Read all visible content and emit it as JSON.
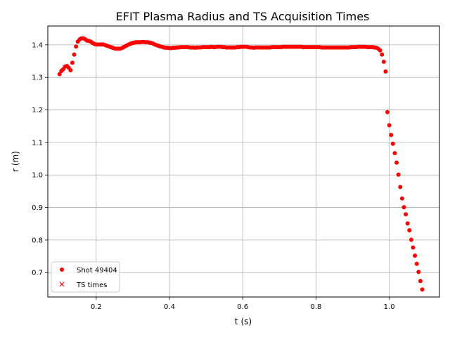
{
  "chart_data": {
    "type": "scatter",
    "title": "EFIT Plasma Radius and TS Acquisition Times",
    "xlabel": "t (s)",
    "ylabel": "r (m)",
    "xlim": [
      0.068,
      1.137
    ],
    "ylim": [
      0.625,
      1.458
    ],
    "xticks": [
      0.2,
      0.4,
      0.6,
      0.8,
      1.0
    ],
    "xtick_labels": [
      "0.2",
      "0.4",
      "0.6",
      "0.8",
      "1.0"
    ],
    "yticks": [
      0.7,
      0.8,
      0.9,
      1.0,
      1.1,
      1.2,
      1.3,
      1.4
    ],
    "ytick_labels": [
      "0.7",
      "0.8",
      "0.9",
      "1.0",
      "1.1",
      "1.2",
      "1.3",
      "1.4"
    ],
    "grid": true,
    "legend_position": "lower-left",
    "series": [
      {
        "name": "Shot 49404",
        "marker": "circle",
        "color": "#ff0000",
        "points": [
          [
            0.1,
            1.31
          ],
          [
            0.105,
            1.32
          ],
          [
            0.11,
            1.325
          ],
          [
            0.115,
            1.333
          ],
          [
            0.12,
            1.335
          ],
          [
            0.125,
            1.33
          ],
          [
            0.13,
            1.322
          ],
          [
            0.135,
            1.345
          ],
          [
            0.14,
            1.37
          ],
          [
            0.145,
            1.395
          ],
          [
            0.15,
            1.41
          ],
          [
            0.155,
            1.417
          ],
          [
            0.16,
            1.42
          ],
          [
            0.165,
            1.42
          ],
          [
            0.17,
            1.417
          ],
          [
            0.175,
            1.413
          ],
          [
            0.18,
            1.412
          ],
          [
            0.185,
            1.41
          ],
          [
            0.19,
            1.406
          ],
          [
            0.195,
            1.403
          ],
          [
            0.2,
            1.401
          ],
          [
            0.205,
            1.401
          ],
          [
            0.21,
            1.401
          ],
          [
            0.215,
            1.401
          ],
          [
            0.22,
            1.401
          ],
          [
            0.225,
            1.399
          ],
          [
            0.23,
            1.397
          ],
          [
            0.235,
            1.395
          ],
          [
            0.24,
            1.393
          ],
          [
            0.245,
            1.391
          ],
          [
            0.25,
            1.389
          ],
          [
            0.255,
            1.388
          ],
          [
            0.26,
            1.388
          ],
          [
            0.265,
            1.388
          ],
          [
            0.27,
            1.39
          ],
          [
            0.275,
            1.393
          ],
          [
            0.28,
            1.396
          ],
          [
            0.285,
            1.399
          ],
          [
            0.29,
            1.402
          ],
          [
            0.295,
            1.404
          ],
          [
            0.3,
            1.406
          ],
          [
            0.305,
            1.407
          ],
          [
            0.31,
            1.408
          ],
          [
            0.315,
            1.408
          ],
          [
            0.32,
            1.408
          ],
          [
            0.325,
            1.409
          ],
          [
            0.33,
            1.409
          ],
          [
            0.335,
            1.408
          ],
          [
            0.34,
            1.408
          ],
          [
            0.345,
            1.407
          ],
          [
            0.35,
            1.406
          ],
          [
            0.355,
            1.404
          ],
          [
            0.36,
            1.401
          ],
          [
            0.365,
            1.399
          ],
          [
            0.37,
            1.397
          ],
          [
            0.375,
            1.395
          ],
          [
            0.38,
            1.394
          ],
          [
            0.385,
            1.392
          ],
          [
            0.39,
            1.391
          ],
          [
            0.395,
            1.391
          ],
          [
            0.4,
            1.39
          ],
          [
            0.405,
            1.39
          ],
          [
            0.41,
            1.391
          ],
          [
            0.415,
            1.391
          ],
          [
            0.42,
            1.392
          ],
          [
            0.425,
            1.392
          ],
          [
            0.43,
            1.393
          ],
          [
            0.435,
            1.393
          ],
          [
            0.44,
            1.393
          ],
          [
            0.445,
            1.393
          ],
          [
            0.45,
            1.393
          ],
          [
            0.455,
            1.392
          ],
          [
            0.46,
            1.392
          ],
          [
            0.465,
            1.392
          ],
          [
            0.47,
            1.391
          ],
          [
            0.475,
            1.392
          ],
          [
            0.48,
            1.392
          ],
          [
            0.485,
            1.392
          ],
          [
            0.49,
            1.393
          ],
          [
            0.495,
            1.393
          ],
          [
            0.5,
            1.393
          ],
          [
            0.505,
            1.393
          ],
          [
            0.51,
            1.393
          ],
          [
            0.515,
            1.394
          ],
          [
            0.52,
            1.393
          ],
          [
            0.525,
            1.393
          ],
          [
            0.53,
            1.394
          ],
          [
            0.535,
            1.394
          ],
          [
            0.54,
            1.394
          ],
          [
            0.545,
            1.393
          ],
          [
            0.55,
            1.393
          ],
          [
            0.555,
            1.392
          ],
          [
            0.56,
            1.392
          ],
          [
            0.565,
            1.392
          ],
          [
            0.57,
            1.392
          ],
          [
            0.575,
            1.392
          ],
          [
            0.58,
            1.392
          ],
          [
            0.585,
            1.393
          ],
          [
            0.59,
            1.393
          ],
          [
            0.595,
            1.394
          ],
          [
            0.6,
            1.394
          ],
          [
            0.605,
            1.394
          ],
          [
            0.61,
            1.394
          ],
          [
            0.615,
            1.393
          ],
          [
            0.62,
            1.392
          ],
          [
            0.625,
            1.392
          ],
          [
            0.63,
            1.391
          ],
          [
            0.635,
            1.392
          ],
          [
            0.64,
            1.392
          ],
          [
            0.645,
            1.392
          ],
          [
            0.65,
            1.392
          ],
          [
            0.655,
            1.392
          ],
          [
            0.66,
            1.392
          ],
          [
            0.665,
            1.392
          ],
          [
            0.67,
            1.392
          ],
          [
            0.675,
            1.392
          ],
          [
            0.68,
            1.393
          ],
          [
            0.685,
            1.393
          ],
          [
            0.69,
            1.393
          ],
          [
            0.695,
            1.393
          ],
          [
            0.7,
            1.393
          ],
          [
            0.705,
            1.393
          ],
          [
            0.71,
            1.394
          ],
          [
            0.715,
            1.394
          ],
          [
            0.72,
            1.394
          ],
          [
            0.725,
            1.394
          ],
          [
            0.73,
            1.394
          ],
          [
            0.735,
            1.394
          ],
          [
            0.74,
            1.394
          ],
          [
            0.745,
            1.394
          ],
          [
            0.75,
            1.394
          ],
          [
            0.755,
            1.394
          ],
          [
            0.76,
            1.394
          ],
          [
            0.765,
            1.393
          ],
          [
            0.77,
            1.393
          ],
          [
            0.775,
            1.393
          ],
          [
            0.78,
            1.393
          ],
          [
            0.785,
            1.393
          ],
          [
            0.79,
            1.393
          ],
          [
            0.795,
            1.393
          ],
          [
            0.8,
            1.393
          ],
          [
            0.805,
            1.393
          ],
          [
            0.81,
            1.393
          ],
          [
            0.815,
            1.392
          ],
          [
            0.82,
            1.392
          ],
          [
            0.825,
            1.392
          ],
          [
            0.83,
            1.392
          ],
          [
            0.835,
            1.392
          ],
          [
            0.84,
            1.392
          ],
          [
            0.845,
            1.392
          ],
          [
            0.85,
            1.392
          ],
          [
            0.855,
            1.392
          ],
          [
            0.86,
            1.392
          ],
          [
            0.865,
            1.392
          ],
          [
            0.87,
            1.392
          ],
          [
            0.875,
            1.392
          ],
          [
            0.88,
            1.392
          ],
          [
            0.885,
            1.392
          ],
          [
            0.89,
            1.392
          ],
          [
            0.895,
            1.393
          ],
          [
            0.9,
            1.393
          ],
          [
            0.905,
            1.393
          ],
          [
            0.91,
            1.393
          ],
          [
            0.915,
            1.394
          ],
          [
            0.92,
            1.394
          ],
          [
            0.925,
            1.394
          ],
          [
            0.93,
            1.394
          ],
          [
            0.935,
            1.394
          ],
          [
            0.94,
            1.393
          ],
          [
            0.945,
            1.393
          ],
          [
            0.95,
            1.393
          ],
          [
            0.955,
            1.393
          ],
          [
            0.96,
            1.392
          ],
          [
            0.965,
            1.391
          ],
          [
            0.97,
            1.388
          ],
          [
            0.975,
            1.383
          ],
          [
            0.98,
            1.37
          ],
          [
            0.985,
            1.348
          ],
          [
            0.99,
            1.318
          ],
          [
            0.995,
            1.193
          ],
          [
            1.0,
            1.153
          ],
          [
            1.005,
            1.123
          ],
          [
            1.01,
            1.096
          ],
          [
            1.015,
            1.067
          ],
          [
            1.02,
            1.038
          ],
          [
            1.025,
            1.001
          ],
          [
            1.03,
            0.963
          ],
          [
            1.035,
            0.928
          ],
          [
            1.04,
            0.901
          ],
          [
            1.045,
            0.879
          ],
          [
            1.05,
            0.851
          ],
          [
            1.055,
            0.83
          ],
          [
            1.06,
            0.801
          ],
          [
            1.065,
            0.777
          ],
          [
            1.07,
            0.752
          ],
          [
            1.075,
            0.727
          ],
          [
            1.08,
            0.702
          ],
          [
            1.085,
            0.674
          ],
          [
            1.09,
            0.648
          ]
        ]
      },
      {
        "name": "TS times",
        "marker": "x",
        "color": "#ff0000",
        "points": []
      }
    ]
  }
}
